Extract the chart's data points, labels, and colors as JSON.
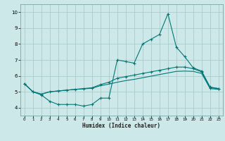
{
  "title": "",
  "xlabel": "Humidex (Indice chaleur)",
  "background_color": "#cce8e8",
  "grid_color": "#aacccc",
  "line_color": "#007878",
  "xlim": [
    -0.5,
    23.5
  ],
  "ylim": [
    3.5,
    10.5
  ],
  "xticks": [
    0,
    1,
    2,
    3,
    4,
    5,
    6,
    7,
    8,
    9,
    10,
    11,
    12,
    13,
    14,
    15,
    16,
    17,
    18,
    19,
    20,
    21,
    22,
    23
  ],
  "yticks": [
    4,
    5,
    6,
    7,
    8,
    9,
    10
  ],
  "series1_x": [
    0,
    1,
    2,
    3,
    4,
    5,
    6,
    7,
    8,
    9,
    10,
    11,
    12,
    13,
    14,
    15,
    16,
    17,
    18,
    19,
    20,
    21,
    22,
    23
  ],
  "series1_y": [
    5.5,
    5.0,
    4.8,
    4.4,
    4.2,
    4.2,
    4.2,
    4.1,
    4.2,
    4.6,
    4.6,
    7.0,
    6.9,
    6.8,
    8.0,
    8.3,
    8.6,
    9.9,
    7.8,
    7.2,
    6.5,
    6.3,
    5.3,
    5.2
  ],
  "series2_x": [
    0,
    1,
    2,
    3,
    4,
    5,
    6,
    7,
    8,
    9,
    10,
    11,
    12,
    13,
    14,
    15,
    16,
    17,
    18,
    19,
    20,
    21,
    22,
    23
  ],
  "series2_y": [
    5.5,
    5.0,
    4.85,
    5.0,
    5.05,
    5.1,
    5.15,
    5.2,
    5.25,
    5.45,
    5.6,
    5.85,
    5.95,
    6.05,
    6.15,
    6.25,
    6.35,
    6.45,
    6.55,
    6.55,
    6.45,
    6.25,
    5.25,
    5.2
  ],
  "series3_x": [
    0,
    1,
    2,
    3,
    4,
    5,
    6,
    7,
    8,
    9,
    10,
    11,
    12,
    13,
    14,
    15,
    16,
    17,
    18,
    19,
    20,
    21,
    22,
    23
  ],
  "series3_y": [
    5.5,
    5.0,
    4.85,
    5.0,
    5.05,
    5.1,
    5.15,
    5.18,
    5.22,
    5.38,
    5.48,
    5.6,
    5.7,
    5.78,
    5.88,
    5.98,
    6.08,
    6.18,
    6.28,
    6.3,
    6.28,
    6.15,
    5.2,
    5.15
  ],
  "marker_style": "+",
  "marker_size": 3,
  "linewidth": 0.8
}
